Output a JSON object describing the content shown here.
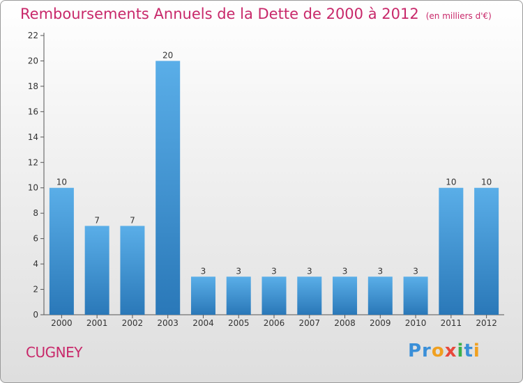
{
  "header": {
    "title": "Remboursements Annuels de la Dette de 2000 à 2012",
    "unit": "(en milliers d'€)"
  },
  "footer": {
    "commune": "CUGNEY",
    "logo": [
      "Pr",
      "o",
      "x",
      "i",
      "t",
      "i"
    ]
  },
  "colors": {
    "bar_top": "#5aaee8",
    "bar_bottom": "#2a78b8",
    "title": "#c8286a"
  },
  "chart_data": {
    "type": "bar",
    "title": "Remboursements Annuels de la Dette de 2000 à 2012",
    "categories": [
      "2000",
      "2001",
      "2002",
      "2003",
      "2004",
      "2005",
      "2006",
      "2007",
      "2008",
      "2009",
      "2010",
      "2011",
      "2012"
    ],
    "values": [
      10,
      7,
      7,
      20,
      3,
      3,
      3,
      3,
      3,
      3,
      3,
      10,
      10
    ],
    "ylim": [
      0,
      22
    ],
    "yticks": [
      0,
      2,
      4,
      6,
      8,
      10,
      12,
      14,
      16,
      18,
      20,
      22
    ],
    "xlabel": "",
    "ylabel": "",
    "grid": false,
    "legend": "none"
  }
}
